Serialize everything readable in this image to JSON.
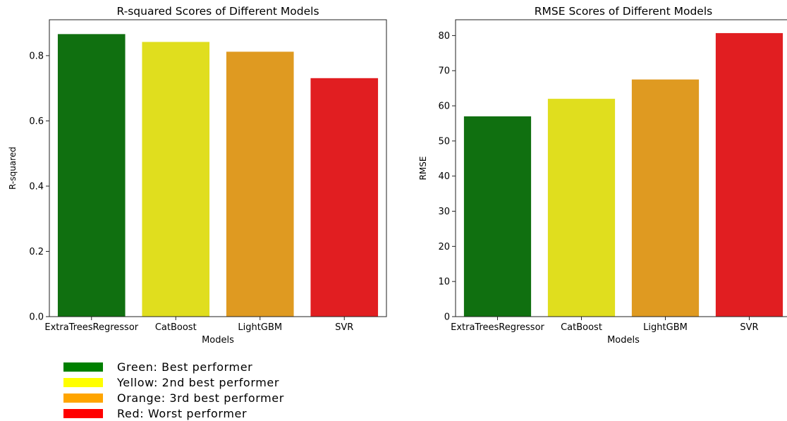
{
  "chart_data": [
    {
      "type": "bar",
      "title": "R-squared Scores of Different Models",
      "xlabel": "Models",
      "ylabel": "R-squared",
      "categories": [
        "ExtraTreesRegressor",
        "CatBoost",
        "LightGBM",
        "SVR"
      ],
      "values": [
        0.866,
        0.842,
        0.812,
        0.731
      ],
      "colors": [
        "#107010",
        "#E0DE1E",
        "#DF9A21",
        "#E11E21"
      ],
      "ylim": [
        0,
        0.91
      ],
      "yticks": [
        0.0,
        0.2,
        0.4,
        0.6,
        0.8
      ],
      "ytick_labels": [
        "0.0",
        "0.2",
        "0.4",
        "0.6",
        "0.8"
      ],
      "grid": false
    },
    {
      "type": "bar",
      "title": "RMSE Scores of Different Models",
      "xlabel": "Models",
      "ylabel": "RMSE",
      "categories": [
        "ExtraTreesRegressor",
        "CatBoost",
        "LightGBM",
        "SVR"
      ],
      "values": [
        57.0,
        62.0,
        67.5,
        80.7
      ],
      "colors": [
        "#107010",
        "#E0DE1E",
        "#DF9A21",
        "#E11E21"
      ],
      "ylim": [
        0,
        84.5
      ],
      "yticks": [
        0,
        10,
        20,
        30,
        40,
        50,
        60,
        70,
        80
      ],
      "ytick_labels": [
        "0",
        "10",
        "20",
        "30",
        "40",
        "50",
        "60",
        "70",
        "80"
      ],
      "grid": false
    }
  ],
  "legend": {
    "items": [
      {
        "label": "Green: Best performer",
        "color": "#008000"
      },
      {
        "label": "Yellow: 2nd best performer",
        "color": "#FFFF00"
      },
      {
        "label": "Orange: 3rd best performer",
        "color": "#FFA500"
      },
      {
        "label": "Red: Worst performer",
        "color": "#FF0000"
      }
    ]
  }
}
